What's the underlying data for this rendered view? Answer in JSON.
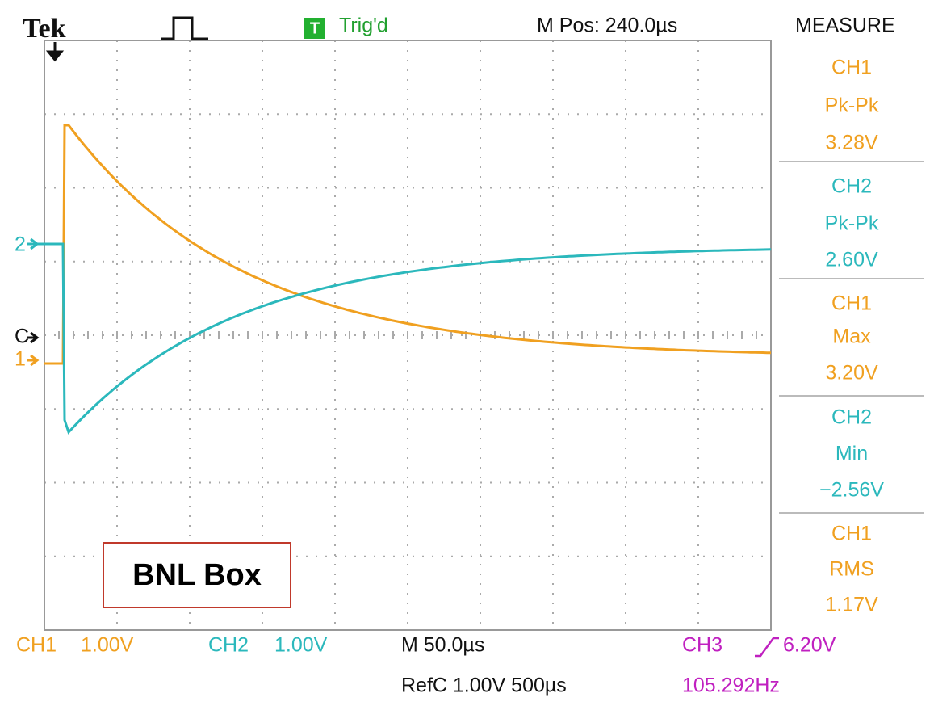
{
  "header": {
    "brand": "Tek",
    "trigger_badge": "T",
    "trigger_status": "Trig'd",
    "position": "M Pos: 240.0µs",
    "panel_title": "MEASURE"
  },
  "measurements": [
    {
      "source": "CH1",
      "type": "Pk-Pk",
      "value": "3.28V"
    },
    {
      "source": "CH2",
      "type": "Pk-Pk",
      "value": "2.60V"
    },
    {
      "source": "CH1",
      "type": "Max",
      "value": "3.20V"
    },
    {
      "source": "CH2",
      "type": "Min",
      "value": "−2.56V"
    },
    {
      "source": "CH1",
      "type": "RMS",
      "value": "1.17V"
    }
  ],
  "markers": {
    "ch2": "2",
    "ref": "C",
    "ch1": "1"
  },
  "footer": {
    "ch1_label": "CH1",
    "ch1_scale": "1.00V",
    "ch2_label": "CH2",
    "ch2_scale": "1.00V",
    "timebase": "M 50.0µs",
    "ref": "RefC 1.00V 500µs",
    "ch3_label": "CH3",
    "trigger_level": "6.20V",
    "frequency": "105.292Hz"
  },
  "annotation": "BNL Box"
}
